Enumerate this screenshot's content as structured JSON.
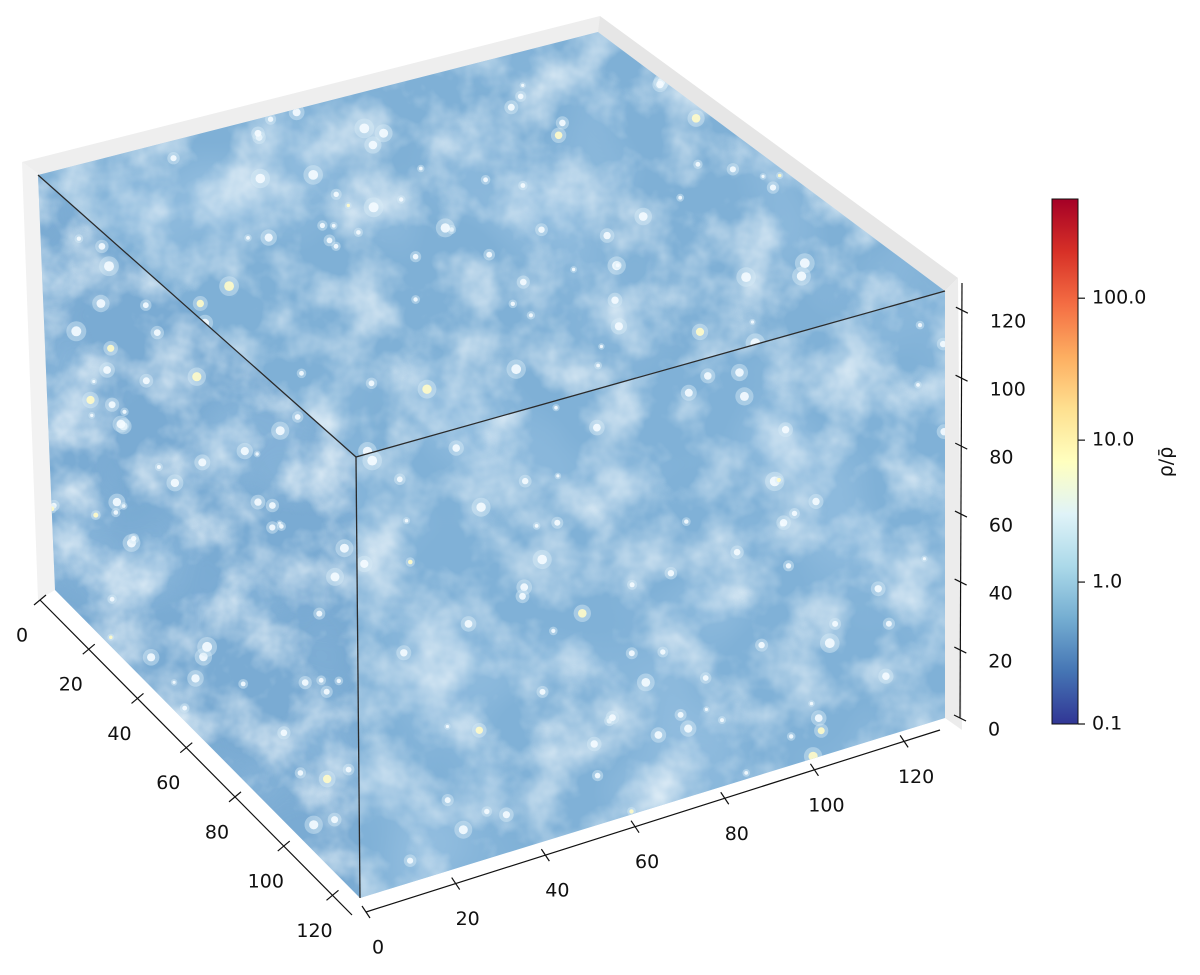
{
  "chart_data": {
    "type": "heatmap",
    "title": "",
    "description_axes": "3D density field cube",
    "x_axis": {
      "label": "",
      "ticks": [
        0,
        20,
        40,
        60,
        80,
        100,
        120
      ],
      "range": [
        0,
        128
      ]
    },
    "y_axis": {
      "label": "",
      "ticks": [
        0,
        20,
        40,
        60,
        80,
        100,
        120
      ],
      "range": [
        0,
        128
      ]
    },
    "z_axis": {
      "label": "",
      "ticks": [
        0,
        20,
        40,
        60,
        80,
        100,
        120
      ],
      "range": [
        0,
        128
      ]
    },
    "colorbar": {
      "label": "ρ/ρ̄",
      "scale": "log",
      "range": [
        0.1,
        500
      ],
      "ticks": [
        0.1,
        1.0,
        10.0,
        100.0
      ],
      "tick_labels": [
        "0.1",
        "1.0",
        "10.0",
        "100.0"
      ],
      "colormap": "RdYlBu_r",
      "colors": [
        "#313695",
        "#4575b4",
        "#74add1",
        "#abd9e9",
        "#e0f3f8",
        "#ffffbf",
        "#fee090",
        "#fdae61",
        "#f46d43",
        "#d73027",
        "#a50026"
      ]
    },
    "face_colors": {
      "background": "#7fb0d6",
      "void": "#5b90c4",
      "filament": "#d8ecf6",
      "node": "#fffbc8"
    },
    "grid": false,
    "legend": "none"
  }
}
